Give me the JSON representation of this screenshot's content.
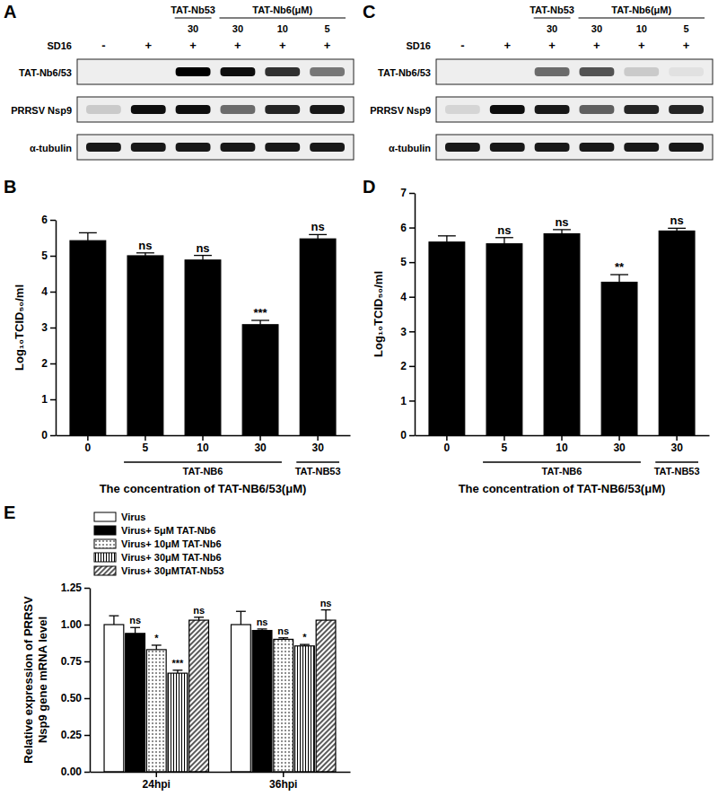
{
  "blots": [
    {
      "title": "A",
      "header": [
        {
          "label": "TAT-Nb53",
          "lanes": [
            2
          ]
        },
        {
          "label": "TAT-Nb6(μM)",
          "lanes": [
            3,
            4,
            5
          ]
        }
      ],
      "doses": [
        null,
        null,
        30,
        30,
        10,
        5
      ],
      "treatment": {
        "label": "SD16",
        "lanes": [
          "-",
          "+",
          "+",
          "+",
          "+",
          "+"
        ]
      },
      "rows": [
        {
          "label": "TAT-Nb6/53",
          "intensity": [
            0,
            0,
            1,
            0.95,
            0.8,
            0.5
          ]
        },
        {
          "label": "PRRSV Nsp9",
          "intensity": [
            0.15,
            0.95,
            0.95,
            0.55,
            0.85,
            0.9
          ]
        },
        {
          "label": "α-tubulin",
          "intensity": [
            0.9,
            0.9,
            0.9,
            0.9,
            0.9,
            0.9
          ]
        }
      ]
    },
    {
      "title": "C",
      "header": [
        {
          "label": "TAT-Nb53",
          "lanes": [
            2
          ]
        },
        {
          "label": "TAT-Nb6(μM)",
          "lanes": [
            3,
            4,
            5
          ]
        }
      ],
      "doses": [
        null,
        null,
        30,
        30,
        10,
        5
      ],
      "treatment": {
        "label": "SD16",
        "lanes": [
          "-",
          "+",
          "+",
          "+",
          "+",
          "+"
        ]
      },
      "rows": [
        {
          "label": "TAT-Nb6/53",
          "intensity": [
            0,
            0,
            0.55,
            0.65,
            0.15,
            0.05
          ]
        },
        {
          "label": "PRRSV Nsp9",
          "intensity": [
            0.1,
            0.95,
            0.9,
            0.6,
            0.85,
            0.85
          ]
        },
        {
          "label": "α-tubulin",
          "intensity": [
            0.9,
            0.9,
            0.9,
            0.9,
            0.9,
            0.9
          ]
        }
      ]
    }
  ],
  "chart_data": [
    {
      "type": "bar",
      "title": "B",
      "categories": [
        "0",
        "5",
        "10",
        "30",
        "30"
      ],
      "values": [
        5.42,
        5.0,
        4.88,
        3.08,
        5.47
      ],
      "errors": [
        0.22,
        0.08,
        0.13,
        0.12,
        0.12
      ],
      "significance": [
        null,
        "ns",
        "ns",
        "***",
        "ns"
      ],
      "color": "#000000",
      "category_groups": [
        {
          "label": "TAT-NB6",
          "categories": [
            1,
            2,
            3
          ]
        },
        {
          "label": "TAT-NB53",
          "categories": [
            4
          ]
        }
      ],
      "x_label": "The concentration of TAT-NB6/53(μM)",
      "y_label": "Log₁₀TCID₅₀/ml",
      "ylim": [
        0,
        6
      ],
      "yticks": [
        0,
        1,
        2,
        3,
        4,
        5,
        6
      ]
    },
    {
      "type": "bar",
      "title": "D",
      "categories": [
        "0",
        "5",
        "10",
        "30",
        "30"
      ],
      "values": [
        5.58,
        5.53,
        5.82,
        4.42,
        5.9
      ],
      "errors": [
        0.18,
        0.18,
        0.12,
        0.22,
        0.08
      ],
      "significance": [
        null,
        "ns",
        "ns",
        "**",
        "ns"
      ],
      "color": "#000000",
      "category_groups": [
        {
          "label": "TAT-NB6",
          "categories": [
            1,
            2,
            3
          ]
        },
        {
          "label": "TAT-NB53",
          "categories": [
            4
          ]
        }
      ],
      "x_label": "The concentration of TAT-NB6/53(μM)",
      "y_label": "Log₁₀TCID₅₀/ml",
      "ylim": [
        0,
        7
      ],
      "yticks": [
        0,
        1,
        2,
        3,
        4,
        5,
        6,
        7
      ]
    },
    {
      "type": "bar",
      "title": "E",
      "categories": [
        "24hpi",
        "36hpi"
      ],
      "series": [
        {
          "name": "Virus",
          "color": "#ffffff",
          "values": [
            1.0,
            1.0
          ],
          "errors": [
            0.06,
            0.09
          ]
        },
        {
          "name": "Virus+ 5μM TAT-Nb6",
          "color": "#000000",
          "values": [
            0.94,
            0.96
          ],
          "errors": [
            0.04,
            0.01
          ],
          "significance": [
            "ns",
            "ns"
          ]
        },
        {
          "name": "Virus+ 10μM TAT-Nb6",
          "color": "#ffffff",
          "values": [
            0.83,
            0.9
          ],
          "errors": [
            0.03,
            0.01
          ],
          "significance": [
            "*",
            "ns"
          ]
        },
        {
          "name": "Virus+ 30μM TAT-Nb6",
          "color": "#ffffff",
          "values": [
            0.67,
            0.855
          ],
          "errors": [
            0.02,
            0.01
          ],
          "significance": [
            "***",
            "*"
          ]
        },
        {
          "name": "Virus+ 30μMTAT-Nb53",
          "color": "#ffffff",
          "values": [
            1.03,
            1.03
          ],
          "errors": [
            0.02,
            0.07
          ],
          "significance": [
            "ns",
            "ns"
          ]
        }
      ],
      "legend": "top-left",
      "y_label": [
        "Relative expression of  PRRSV",
        "Nsp9 gene mRNA level"
      ],
      "ylim": [
        0,
        1.25
      ],
      "yticks": [
        {
          "value": 0,
          "label": "0.00"
        },
        {
          "value": 0.25,
          "label": "0.25"
        },
        {
          "value": 0.5,
          "label": "0.50"
        },
        {
          "value": 0.75,
          "label": "0.75"
        },
        {
          "value": 1,
          "label": "1.00"
        },
        {
          "value": 1.25,
          "label": "1.25"
        }
      ]
    }
  ]
}
